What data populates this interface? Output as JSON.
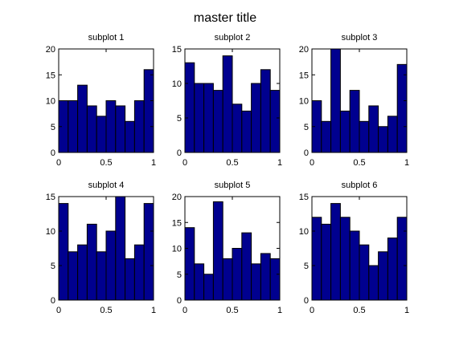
{
  "figure": {
    "title": "master title",
    "bar_color": "#00008f",
    "edge_color": "#000000",
    "background": "#ffffff"
  },
  "chart_data": [
    {
      "type": "bar",
      "title": "subplot 1",
      "bin_edges": [
        0,
        0.1,
        0.2,
        0.3,
        0.4,
        0.5,
        0.6,
        0.7,
        0.8,
        0.9,
        1.0
      ],
      "values": [
        10,
        10,
        13,
        9,
        7,
        10,
        9,
        6,
        10,
        16
      ],
      "xlim": [
        0,
        1
      ],
      "ylim": [
        0,
        20
      ],
      "xticks": [
        0,
        0.5,
        1
      ],
      "yticks": [
        0,
        5,
        10,
        15,
        20
      ],
      "xtick_labels": [
        "0",
        "0.5",
        "1"
      ],
      "ytick_labels": [
        "0",
        "5",
        "10",
        "15",
        "20"
      ]
    },
    {
      "type": "bar",
      "title": "subplot 2",
      "bin_edges": [
        0,
        0.1,
        0.2,
        0.3,
        0.4,
        0.5,
        0.6,
        0.7,
        0.8,
        0.9,
        1.0
      ],
      "values": [
        13,
        10,
        10,
        9,
        14,
        7,
        6,
        10,
        12,
        9
      ],
      "xlim": [
        0,
        1
      ],
      "ylim": [
        0,
        15
      ],
      "xticks": [
        0,
        0.5,
        1
      ],
      "yticks": [
        0,
        5,
        10,
        15
      ],
      "xtick_labels": [
        "0",
        "0.5",
        "1"
      ],
      "ytick_labels": [
        "0",
        "5",
        "10",
        "15"
      ]
    },
    {
      "type": "bar",
      "title": "subplot 3",
      "bin_edges": [
        0,
        0.1,
        0.2,
        0.3,
        0.4,
        0.5,
        0.6,
        0.7,
        0.8,
        0.9,
        1.0
      ],
      "values": [
        10,
        6,
        20,
        8,
        12,
        6,
        9,
        5,
        7,
        17
      ],
      "xlim": [
        0,
        1
      ],
      "ylim": [
        0,
        20
      ],
      "xticks": [
        0,
        0.5,
        1
      ],
      "yticks": [
        0,
        5,
        10,
        15,
        20
      ],
      "xtick_labels": [
        "0",
        "0.5",
        "1"
      ],
      "ytick_labels": [
        "0",
        "5",
        "10",
        "15",
        "20"
      ]
    },
    {
      "type": "bar",
      "title": "subplot 4",
      "bin_edges": [
        0,
        0.1,
        0.2,
        0.3,
        0.4,
        0.5,
        0.6,
        0.7,
        0.8,
        0.9,
        1.0
      ],
      "values": [
        14,
        7,
        8,
        11,
        7,
        10,
        15,
        6,
        8,
        14
      ],
      "xlim": [
        0,
        1
      ],
      "ylim": [
        0,
        15
      ],
      "xticks": [
        0,
        0.5,
        1
      ],
      "yticks": [
        0,
        5,
        10,
        15
      ],
      "xtick_labels": [
        "0",
        "0.5",
        "1"
      ],
      "ytick_labels": [
        "0",
        "5",
        "10",
        "15"
      ]
    },
    {
      "type": "bar",
      "title": "subplot 5",
      "bin_edges": [
        0,
        0.1,
        0.2,
        0.3,
        0.4,
        0.5,
        0.6,
        0.7,
        0.8,
        0.9,
        1.0
      ],
      "values": [
        14,
        7,
        5,
        19,
        8,
        10,
        13,
        7,
        9,
        8
      ],
      "xlim": [
        0,
        1
      ],
      "ylim": [
        0,
        20
      ],
      "xticks": [
        0,
        0.5,
        1
      ],
      "yticks": [
        0,
        5,
        10,
        15,
        20
      ],
      "xtick_labels": [
        "0",
        "0.5",
        "1"
      ],
      "ytick_labels": [
        "0",
        "5",
        "10",
        "15",
        "20"
      ]
    },
    {
      "type": "bar",
      "title": "subplot 6",
      "bin_edges": [
        0,
        0.1,
        0.2,
        0.3,
        0.4,
        0.5,
        0.6,
        0.7,
        0.8,
        0.9,
        1.0
      ],
      "values": [
        12,
        11,
        14,
        12,
        10,
        8,
        5,
        7,
        9,
        12
      ],
      "xlim": [
        0,
        1
      ],
      "ylim": [
        0,
        15
      ],
      "xticks": [
        0,
        0.5,
        1
      ],
      "yticks": [
        0,
        5,
        10,
        15
      ],
      "xtick_labels": [
        "0",
        "0.5",
        "1"
      ],
      "ytick_labels": [
        "0",
        "5",
        "10",
        "15"
      ]
    }
  ]
}
